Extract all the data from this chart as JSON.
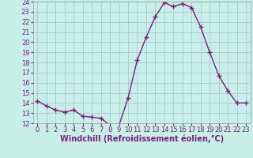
{
  "x": [
    0,
    1,
    2,
    3,
    4,
    5,
    6,
    7,
    8,
    9,
    10,
    11,
    12,
    13,
    14,
    15,
    16,
    17,
    18,
    19,
    20,
    21,
    22,
    23
  ],
  "y": [
    14.2,
    13.7,
    13.3,
    13.1,
    13.3,
    12.7,
    12.6,
    12.5,
    11.8,
    11.8,
    14.5,
    18.2,
    20.5,
    22.5,
    23.9,
    23.5,
    23.8,
    23.4,
    21.5,
    19.0,
    16.7,
    15.2,
    14.0,
    14.0
  ],
  "line_color": "#7b1f7b",
  "marker": "+",
  "marker_size": 4,
  "bg_color": "#c8eee8",
  "grid_color": "#aacccc",
  "xlabel": "Windchill (Refroidissement éolien,°C)",
  "xlabel_fontsize": 7,
  "tick_fontsize": 6,
  "ylim": [
    12,
    24
  ],
  "yticks": [
    12,
    13,
    14,
    15,
    16,
    17,
    18,
    19,
    20,
    21,
    22,
    23,
    24
  ],
  "xticks": [
    0,
    1,
    2,
    3,
    4,
    5,
    6,
    7,
    8,
    9,
    10,
    11,
    12,
    13,
    14,
    15,
    16,
    17,
    18,
    19,
    20,
    21,
    22,
    23
  ],
  "linewidth": 1.0
}
